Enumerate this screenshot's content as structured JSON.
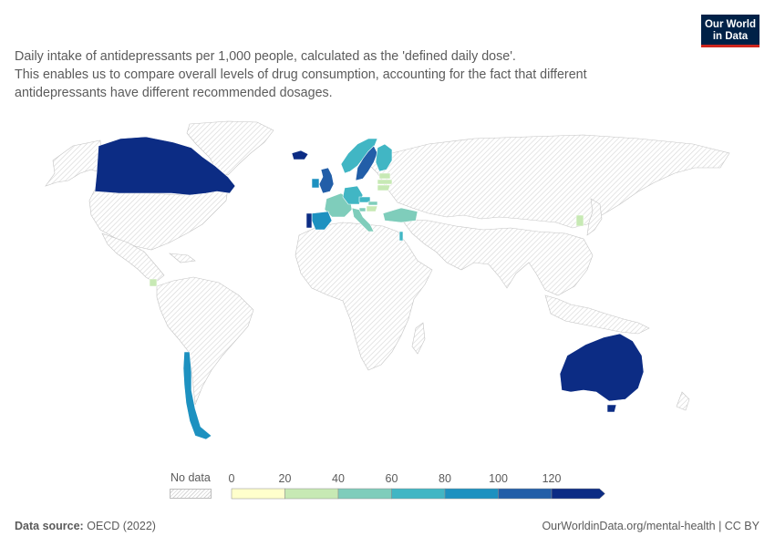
{
  "logo": {
    "line1": "Our World",
    "line2": "in Data"
  },
  "subtitle": [
    "Daily intake of antidepressants per 1,000 people, calculated as the 'defined daily dose'.",
    "This enables us to compare overall levels of drug consumption, accounting for the fact that different",
    "antidepressants have different recommended dosages."
  ],
  "legend": {
    "no_data_label": "No data",
    "ticks": [
      "0",
      "20",
      "40",
      "60",
      "80",
      "100",
      "120"
    ],
    "colors": [
      "#ffffcc",
      "#c7e9b4",
      "#7fcdbb",
      "#41b6c4",
      "#1d91c0",
      "#225ea8",
      "#0c2c84"
    ]
  },
  "chart_data": {
    "type": "choropleth",
    "unit": "daily doses per 1,000 people",
    "scale_bins": [
      0,
      20,
      40,
      60,
      80,
      100,
      120
    ],
    "regions": [
      {
        "name": "Canada",
        "value": 125
      },
      {
        "name": "Australia",
        "value": 130
      },
      {
        "name": "Iceland",
        "value": 140
      },
      {
        "name": "Chile",
        "value": 90
      },
      {
        "name": "Costa Rica",
        "value": 30
      },
      {
        "name": "Portugal",
        "value": 125
      },
      {
        "name": "Spain",
        "value": 90
      },
      {
        "name": "United Kingdom",
        "value": 110
      },
      {
        "name": "Ireland",
        "value": 80
      },
      {
        "name": "France",
        "value": 50
      },
      {
        "name": "Italy",
        "value": 55
      },
      {
        "name": "Germany",
        "value": 60
      },
      {
        "name": "Norway",
        "value": 70
      },
      {
        "name": "Sweden",
        "value": 105
      },
      {
        "name": "Finland",
        "value": 75
      },
      {
        "name": "Estonia",
        "value": 30
      },
      {
        "name": "Latvia",
        "value": 25
      },
      {
        "name": "Lithuania",
        "value": 30
      },
      {
        "name": "Czechia",
        "value": 65
      },
      {
        "name": "Slovakia",
        "value": 50
      },
      {
        "name": "Hungary",
        "value": 35
      },
      {
        "name": "Slovenia",
        "value": 45
      },
      {
        "name": "Turkey",
        "value": 50
      },
      {
        "name": "Israel",
        "value": 60
      },
      {
        "name": "South Korea",
        "value": 25
      }
    ]
  },
  "footer": {
    "source_label": "Data source:",
    "source_value": "OECD (2022)",
    "url": "OurWorldinData.org/mental-health | CC BY"
  }
}
